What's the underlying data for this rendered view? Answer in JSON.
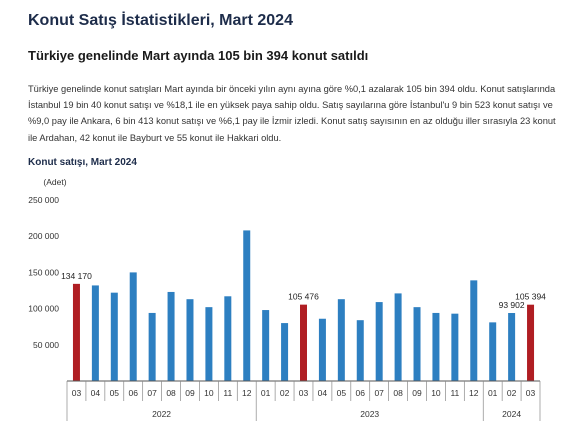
{
  "header": {
    "title": "Konut Satış İstatistikleri, Mart 2024",
    "subtitle": "Türkiye genelinde Mart ayında 105 bin 394 konut satıldı"
  },
  "summary": {
    "paragraph": "Türkiye genelinde konut satışları Mart ayında bir önceki yılın aynı ayına göre %0,1 azalarak 105 bin 394 oldu. Konut satışlarında İstanbul 19 bin 40 konut satışı ve %18,1 ile en yüksek paya sahip oldu. Satış sayılarına göre İstanbul'u 9 bin 523 konut satışı ve %9,0 pay ile Ankara, 6 bin 413 konut satışı ve %6,1 pay ile İzmir izledi. Konut satış sayısının en az olduğu iller sırasıyla 23 konut ile Ardahan, 42 konut ile Bayburt ve 55 konut ile Hakkari oldu."
  },
  "chart_data": {
    "type": "bar",
    "title": "Konut satışı, Mart 2024",
    "ylabel": "(Adet)",
    "ylim": [
      0,
      250000
    ],
    "yticks": [
      50000,
      100000,
      150000,
      200000,
      250000
    ],
    "ytick_labels": [
      "50 000",
      "100 000",
      "150 000",
      "200 000",
      "250 000"
    ],
    "categories": [
      "03",
      "04",
      "05",
      "06",
      "07",
      "08",
      "09",
      "10",
      "11",
      "12",
      "01",
      "02",
      "03",
      "04",
      "05",
      "06",
      "07",
      "08",
      "09",
      "10",
      "11",
      "12",
      "01",
      "02",
      "03"
    ],
    "year_groups": [
      {
        "label": "2022",
        "start": 0,
        "end": 9
      },
      {
        "label": "2023",
        "start": 10,
        "end": 21
      },
      {
        "label": "2024",
        "start": 22,
        "end": 24
      }
    ],
    "values": [
      134170,
      132000,
      122000,
      150000,
      94000,
      123000,
      113000,
      102000,
      117000,
      208000,
      98000,
      80000,
      105476,
      86000,
      113000,
      84000,
      109000,
      121000,
      102000,
      94000,
      93000,
      139000,
      81000,
      93902,
      105394
    ],
    "highlight_indices": [
      0,
      12,
      24
    ],
    "data_labels": [
      {
        "index": 0,
        "text": "134 170"
      },
      {
        "index": 12,
        "text": "105 476"
      },
      {
        "index": 23,
        "text": "93 902"
      },
      {
        "index": 24,
        "text": "105 394"
      }
    ],
    "colors": {
      "bar": "#2d7fc1",
      "highlight": "#b01e23",
      "axis": "#555555",
      "text": "#333333"
    }
  }
}
